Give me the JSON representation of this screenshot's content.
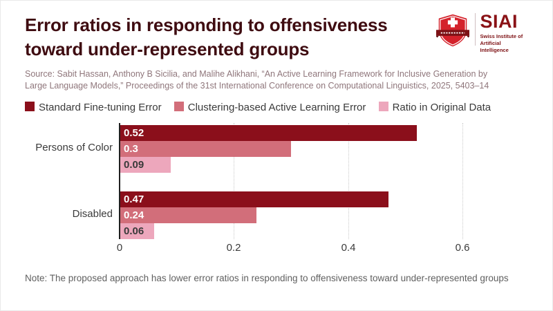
{
  "header": {
    "logo": {
      "acronym": "SIAI",
      "org_line1": "Swiss Institute of",
      "org_line2": "Artificial Intelligence"
    }
  },
  "source": "Source: Sabit Hassan, Anthony B Sicilia, and Malihe Alikhani, “An Active Learning Framework for Inclusive Generation by Large Language Models,” Proceedings of the 31st International Conference on Computational Linguistics, 2025, 5403–14",
  "note": "Note: The proposed approach has lower error ratios in responding to offensiveness toward under-represented groups",
  "colors": {
    "title": "#3f0c11",
    "dark_bar": "#8b0f1b",
    "mid_bar": "#d26e7a",
    "light_bar": "#eda7bc",
    "logo_red": "#d4222b",
    "logo_banner": "#7d1216",
    "axis_line": "#1f1f1f",
    "gridline": "#c9c9c9"
  },
  "chart_data": {
    "type": "bar",
    "orientation": "horizontal",
    "title": "Error ratios in responding to offensiveness toward under-represented groups",
    "categories": [
      "Persons of Color",
      "Disabled"
    ],
    "series": [
      {
        "name": "Standard Fine-tuning Error",
        "color": "#8b0f1b",
        "values": [
          0.52,
          0.47
        ]
      },
      {
        "name": "Clustering-based Active Learning Error",
        "color": "#d26e7a",
        "values": [
          0.3,
          0.24
        ]
      },
      {
        "name": "Ratio in Original Data",
        "color": "#eda7bc",
        "values": [
          0.09,
          0.06
        ]
      }
    ],
    "xlabel": "",
    "ylabel": "",
    "xlim": [
      0,
      0.66
    ],
    "xticks": [
      0,
      0.2,
      0.4,
      0.6
    ],
    "grid": "vertical-dotted",
    "legend_position": "top",
    "bar_value_labels": [
      "0.52",
      "0.3",
      "0.09",
      "0.47",
      "0.24",
      "0.06"
    ]
  }
}
